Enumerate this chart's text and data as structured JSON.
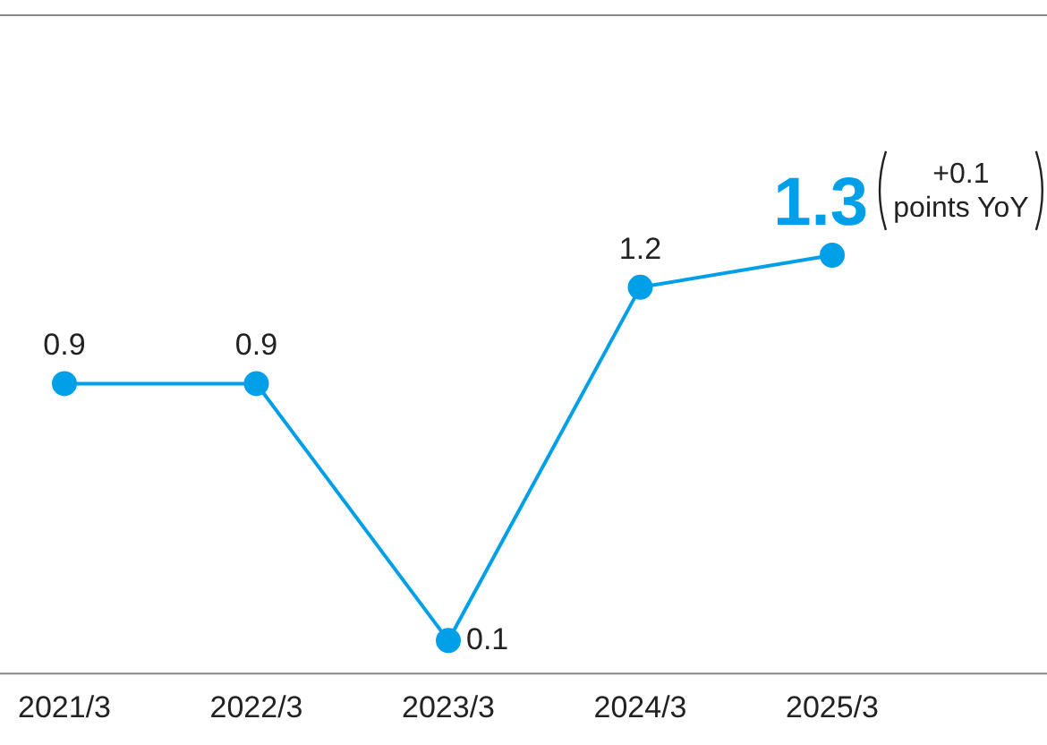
{
  "chart_data": {
    "type": "line",
    "categories": [
      "2021/3",
      "2022/3",
      "2023/3",
      "2024/3",
      "2025/3"
    ],
    "series": [
      {
        "color": "#00a0e9",
        "values": [
          0.9,
          0.9,
          0.1,
          1.2,
          1.3
        ]
      }
    ],
    "ylim": [
      0,
      2.05
    ],
    "tick_labels": "x",
    "grid": false,
    "legend": false,
    "marker": "circle",
    "line_style": "solid",
    "data_labels": true,
    "annotations": [
      {
        "text": "+0.1 points YoY",
        "x": "2025/3",
        "y": 1.3
      }
    ]
  }
}
